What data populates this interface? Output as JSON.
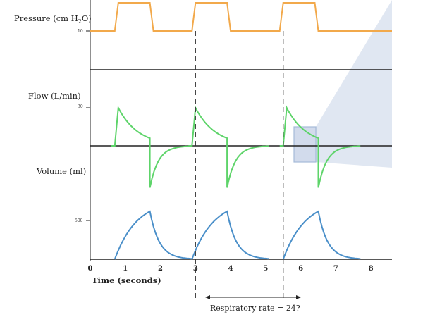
{
  "chart_data": {
    "type": "line",
    "title": "",
    "panels": [
      {
        "name": "pressure",
        "ylabel_text": "Pressure (cm H",
        "ylabel_sub": "2",
        "ylabel_end": "O)",
        "ytick": "10",
        "color": "#f2a94b",
        "x": [
          0,
          0.7,
          0.8,
          1.7,
          1.8,
          2.9,
          3.0,
          3.9,
          4.0,
          5.4,
          5.5,
          6.4,
          6.5,
          8.6
        ],
        "y": [
          10,
          10,
          14,
          14,
          10,
          10,
          14,
          14,
          10,
          10,
          14,
          14,
          10,
          10
        ]
      },
      {
        "name": "flow",
        "ylabel": "Flow (L/min)",
        "ytick": "30",
        "color": "#5ed46a",
        "baseline_value": 0,
        "breaths_start": [
          0.7,
          2.9,
          5.5
        ],
        "peak": 30,
        "trough": -33,
        "insp_duration": 1.0,
        "exp_duration": 1.2
      },
      {
        "name": "volume",
        "ylabel": "Volume (ml)",
        "ytick": "500",
        "color": "#4a8fc9",
        "breaths_start": [
          0.7,
          2.9,
          5.5
        ],
        "peak": 500,
        "insp_duration": 1.0,
        "exp_duration": 1.2
      }
    ],
    "x_axis": {
      "label": "Time (seconds)",
      "ticks": [
        "0",
        "1",
        "2",
        "3",
        "4",
        "5",
        "6",
        "7",
        "8"
      ],
      "xlim": [
        0,
        8.6
      ]
    },
    "markers": [
      3.0,
      5.5
    ],
    "annotation": "Respiratory rate = 24?"
  }
}
